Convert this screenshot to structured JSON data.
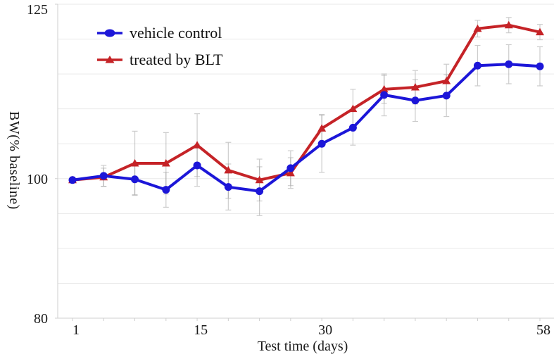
{
  "figure": {
    "background": "#ffffff",
    "text_color": "#1a1a1a",
    "gridline_color": "#e9e9e9",
    "axis_color": "#cfcfcf",
    "error_bar_color": "#9a9a9a"
  },
  "legend": {
    "position": "top-left",
    "items": [
      {
        "label": "vehicle control",
        "color": "#1c16d8",
        "marker": "circle"
      },
      {
        "label": "treated by BLT",
        "color": "#c52327",
        "marker": "triangle"
      }
    ]
  },
  "chart_data": {
    "type": "line",
    "title": "",
    "xlabel": "Test time (days)",
    "ylabel": "BW(% baseline)",
    "ylim": [
      80,
      125
    ],
    "y_gridline_step": 5,
    "y_tick_labels": [
      80,
      100,
      125
    ],
    "x_days": [
      1,
      4,
      8,
      11,
      15,
      19,
      22,
      26,
      30,
      34,
      38,
      42,
      46,
      50,
      54,
      58
    ],
    "x_tick_labels": [
      {
        "label": "1",
        "point_index": 0
      },
      {
        "label": "15",
        "point_index": 4
      },
      {
        "label": "30",
        "point_index": 8
      },
      {
        "label": "58",
        "point_index": 15
      }
    ],
    "grid": "horizontal-only",
    "legend_position": "top-left",
    "series": [
      {
        "name": "treated by BLT",
        "color": "#c52327",
        "marker": "triangle",
        "values": [
          99.8,
          100.2,
          102.2,
          102.2,
          104.8,
          101.2,
          99.8,
          100.8,
          107.2,
          110.0,
          112.8,
          113.1,
          114.0,
          121.5,
          122.0,
          121.0
        ],
        "errors": [
          0.4,
          1.3,
          4.6,
          4.4,
          4.5,
          4.0,
          3.0,
          2.2,
          2.0,
          2.8,
          2.0,
          2.4,
          2.4,
          1.2,
          1.1,
          1.1
        ]
      },
      {
        "name": "vehicle control",
        "color": "#1c16d8",
        "marker": "circle",
        "values": [
          99.8,
          100.4,
          99.9,
          98.4,
          101.9,
          98.8,
          98.2,
          101.5,
          105.0,
          107.3,
          112.0,
          111.2,
          111.9,
          116.2,
          116.4,
          116.1
        ],
        "errors": [
          0.4,
          1.5,
          2.2,
          2.5,
          3.0,
          3.3,
          3.5,
          2.5,
          4.1,
          2.5,
          3.0,
          3.0,
          3.0,
          2.9,
          2.8,
          2.8
        ]
      }
    ]
  }
}
